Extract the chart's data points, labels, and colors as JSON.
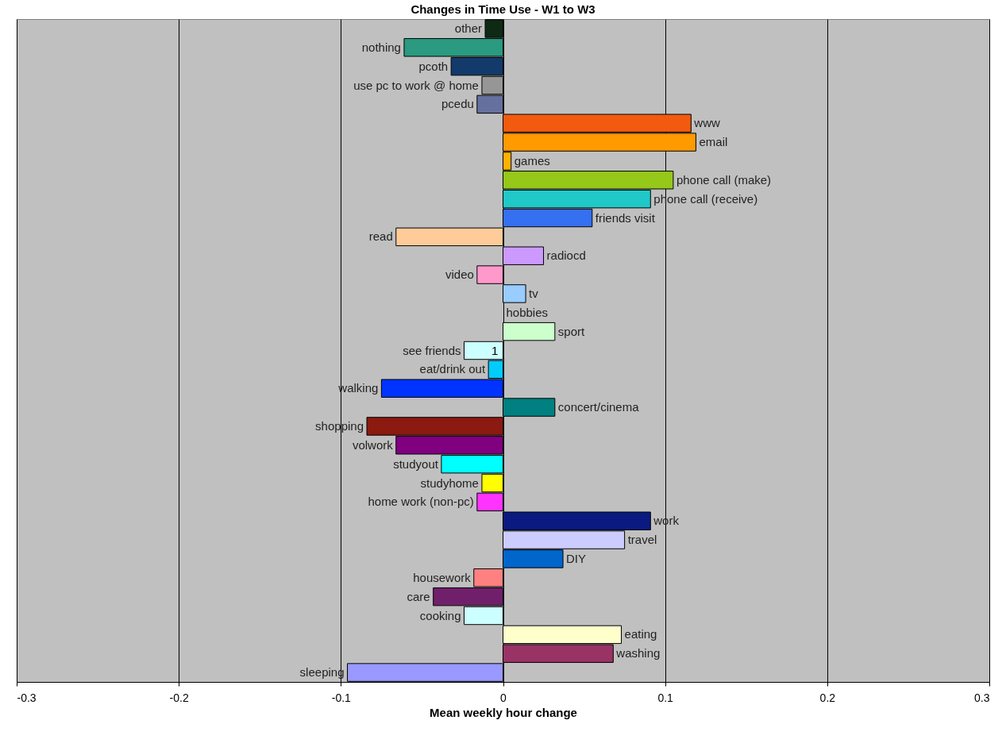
{
  "chart_data": {
    "type": "bar",
    "orientation": "horizontal",
    "title": "Changes in Time Use - W1 to W3",
    "xlabel": "Mean weekly hour change",
    "categories": [
      "other",
      "nothing",
      "pcoth",
      "use pc to work @ home",
      "pcedu",
      "www",
      "email",
      "games",
      "phone call (make)",
      "phone call (receive)",
      "friends visit",
      "read",
      "radiocd",
      "video",
      "tv",
      "hobbies",
      "sport",
      "see friends",
      "eat/drink out",
      "walking",
      "concert/cinema",
      "shopping",
      "volwork",
      "studyout",
      "studyhome",
      "home work (non-pc)",
      "work",
      "travel",
      "DIY",
      "housework",
      "care",
      "cooking",
      "eating",
      "washing",
      "sleeping"
    ],
    "values": [
      -0.011,
      -0.061,
      -0.032,
      -0.013,
      -0.016,
      0.116,
      0.119,
      0.005,
      0.105,
      0.091,
      0.055,
      -0.066,
      0.025,
      -0.016,
      0.014,
      null,
      0.032,
      -0.024,
      -0.009,
      -0.075,
      0.032,
      -0.084,
      -0.066,
      -0.038,
      -0.013,
      -0.016,
      0.091,
      0.075,
      0.037,
      -0.018,
      -0.043,
      -0.024,
      0.073,
      0.068,
      -0.096
    ],
    "colors": [
      "#0f2a14",
      "#2a9a80",
      "#123a6a",
      "#969696",
      "#66709e",
      "#f25a10",
      "#ff9a00",
      "#ffb000",
      "#95c818",
      "#20c8c8",
      "#3570f0",
      "#ffcc99",
      "#cc99ff",
      "#ff99cc",
      "#99ccff",
      "#c0c0c0",
      "#ccffcc",
      "#ccffff",
      "#00ccff",
      "#0033ff",
      "#008080",
      "#8b1a10",
      "#800080",
      "#00ffff",
      "#ffff00",
      "#ff33ff",
      "#0a1a80",
      "#ccccff",
      "#0066cc",
      "#ff8080",
      "#70206a",
      "#ccffff",
      "#ffffcc",
      "#993366",
      "#9999ff"
    ],
    "xlim": [
      -0.3,
      0.3
    ],
    "xticks": [
      -0.3,
      -0.2,
      -0.1,
      0,
      0.1,
      0.2,
      0.3
    ],
    "grid": "x",
    "legend": false,
    "annotations": [
      {
        "text": "1",
        "x": -0.005,
        "y": "see friends"
      }
    ]
  }
}
